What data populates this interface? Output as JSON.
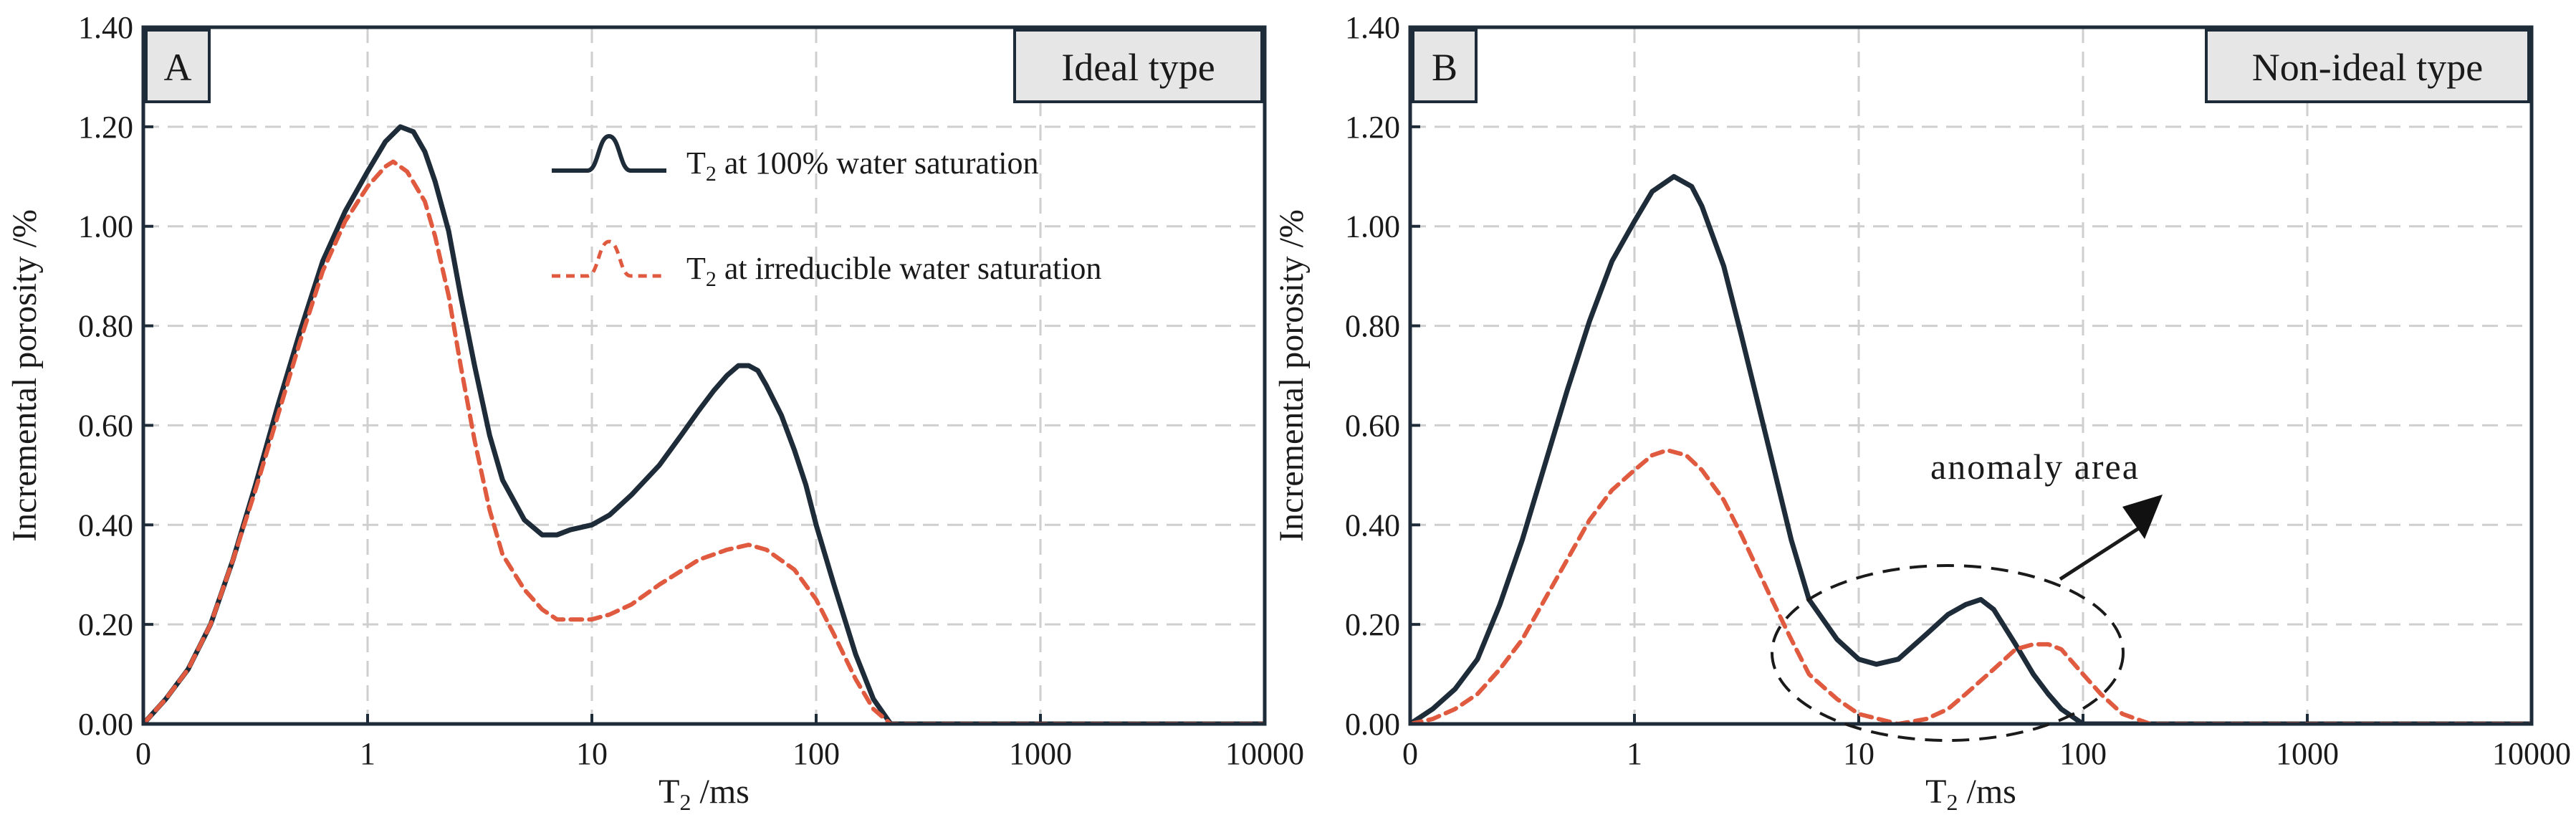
{
  "chart_data": [
    {
      "panel": "A",
      "type": "line",
      "title": "Ideal type",
      "xlabel": "T",
      "xlabel_sub": "2",
      "xlabel_unit": " /ms",
      "ylabel": "Incremental porosity /%",
      "xscale": "log (first interval 0–1)",
      "xticks": [
        "0",
        "1",
        "10",
        "100",
        "1000",
        "10000"
      ],
      "yticks": [
        "0.00",
        "0.20",
        "0.40",
        "0.60",
        "0.80",
        "1.00",
        "1.20",
        "1.40"
      ],
      "ylim": [
        0,
        1.4
      ],
      "grid": true,
      "legend": {
        "placement": "top-center",
        "entries": [
          {
            "prefix": "T",
            "sub": "2",
            "text": " at 100% water saturation",
            "style": "solid"
          },
          {
            "prefix": "T",
            "sub": "2",
            "text": " at irreducible water saturation",
            "style": "dashed"
          }
        ]
      },
      "series": [
        {
          "name": "T2 at 100% water saturation",
          "color": "#1e2b38",
          "dash": false,
          "points": [
            [
              0,
              0
            ],
            [
              0.1,
              0.05
            ],
            [
              0.2,
              0.11
            ],
            [
              0.3,
              0.2
            ],
            [
              0.4,
              0.33
            ],
            [
              0.5,
              0.48
            ],
            [
              0.6,
              0.64
            ],
            [
              0.7,
              0.79
            ],
            [
              0.8,
              0.93
            ],
            [
              0.9,
              1.03
            ],
            [
              1.0,
              1.11
            ],
            [
              1.2,
              1.17
            ],
            [
              1.4,
              1.2
            ],
            [
              1.6,
              1.19
            ],
            [
              1.8,
              1.15
            ],
            [
              2.0,
              1.09
            ],
            [
              2.3,
              0.99
            ],
            [
              2.6,
              0.86
            ],
            [
              3.0,
              0.72
            ],
            [
              3.5,
              0.58
            ],
            [
              4.0,
              0.49
            ],
            [
              5.0,
              0.41
            ],
            [
              6.0,
              0.38
            ],
            [
              7.0,
              0.38
            ],
            [
              8.0,
              0.39
            ],
            [
              10.0,
              0.4
            ],
            [
              12.0,
              0.42
            ],
            [
              15.0,
              0.46
            ],
            [
              20.0,
              0.52
            ],
            [
              25.0,
              0.58
            ],
            [
              30.0,
              0.63
            ],
            [
              35.0,
              0.67
            ],
            [
              40.0,
              0.7
            ],
            [
              45.0,
              0.72
            ],
            [
              50.0,
              0.72
            ],
            [
              55.0,
              0.71
            ],
            [
              60.0,
              0.68
            ],
            [
              70.0,
              0.62
            ],
            [
              80.0,
              0.55
            ],
            [
              90.0,
              0.48
            ],
            [
              100.0,
              0.4
            ],
            [
              120.0,
              0.28
            ],
            [
              150.0,
              0.14
            ],
            [
              180.0,
              0.05
            ],
            [
              215.0,
              0.0
            ],
            [
              10000,
              0
            ]
          ]
        },
        {
          "name": "T2 at irreducible water saturation",
          "color": "#e05a3f",
          "dash": true,
          "points": [
            [
              0,
              0
            ],
            [
              0.1,
              0.05
            ],
            [
              0.2,
              0.11
            ],
            [
              0.3,
              0.2
            ],
            [
              0.4,
              0.33
            ],
            [
              0.5,
              0.47
            ],
            [
              0.6,
              0.62
            ],
            [
              0.7,
              0.77
            ],
            [
              0.8,
              0.91
            ],
            [
              0.9,
              1.01
            ],
            [
              1.0,
              1.08
            ],
            [
              1.2,
              1.12
            ],
            [
              1.3,
              1.13
            ],
            [
              1.5,
              1.11
            ],
            [
              1.8,
              1.05
            ],
            [
              2.0,
              0.98
            ],
            [
              2.3,
              0.86
            ],
            [
              2.6,
              0.72
            ],
            [
              3.0,
              0.57
            ],
            [
              3.5,
              0.43
            ],
            [
              4.0,
              0.34
            ],
            [
              5.0,
              0.27
            ],
            [
              6.0,
              0.23
            ],
            [
              7.0,
              0.21
            ],
            [
              8.0,
              0.21
            ],
            [
              10.0,
              0.21
            ],
            [
              12.0,
              0.22
            ],
            [
              15.0,
              0.24
            ],
            [
              20.0,
              0.28
            ],
            [
              30.0,
              0.33
            ],
            [
              40.0,
              0.35
            ],
            [
              50.0,
              0.36
            ],
            [
              60.0,
              0.35
            ],
            [
              80.0,
              0.31
            ],
            [
              100.0,
              0.25
            ],
            [
              120.0,
              0.18
            ],
            [
              150.0,
              0.09
            ],
            [
              180.0,
              0.03
            ],
            [
              215.0,
              0.0
            ],
            [
              10000,
              0
            ]
          ]
        }
      ]
    },
    {
      "panel": "B",
      "type": "line",
      "title": "Non-ideal type",
      "xlabel": "T",
      "xlabel_sub": "2",
      "xlabel_unit": " /ms",
      "ylabel": "Incremental porosity /%",
      "xscale": "log (first interval 0–1)",
      "xticks": [
        "0",
        "1",
        "10",
        "100",
        "1000",
        "10000"
      ],
      "yticks": [
        "0.00",
        "0.20",
        "0.40",
        "0.60",
        "0.80",
        "1.00",
        "1.20",
        "1.40"
      ],
      "ylim": [
        0,
        1.4
      ],
      "grid": true,
      "annotation": {
        "text": "anomaly area",
        "target": "ellipse around T2 10–160 ms"
      },
      "series": [
        {
          "name": "T2 at 100% water saturation",
          "color": "#1e2b38",
          "dash": false,
          "points": [
            [
              0,
              0
            ],
            [
              0.1,
              0.03
            ],
            [
              0.2,
              0.07
            ],
            [
              0.3,
              0.13
            ],
            [
              0.4,
              0.24
            ],
            [
              0.5,
              0.37
            ],
            [
              0.6,
              0.52
            ],
            [
              0.7,
              0.67
            ],
            [
              0.8,
              0.81
            ],
            [
              0.9,
              0.93
            ],
            [
              1.0,
              1.01
            ],
            [
              1.2,
              1.07
            ],
            [
              1.5,
              1.1
            ],
            [
              1.8,
              1.08
            ],
            [
              2.0,
              1.04
            ],
            [
              2.5,
              0.92
            ],
            [
              3.0,
              0.78
            ],
            [
              4.0,
              0.55
            ],
            [
              5.0,
              0.37
            ],
            [
              6.0,
              0.25
            ],
            [
              8.0,
              0.17
            ],
            [
              10.0,
              0.13
            ],
            [
              12.0,
              0.12
            ],
            [
              15.0,
              0.13
            ],
            [
              20.0,
              0.18
            ],
            [
              25.0,
              0.22
            ],
            [
              30.0,
              0.24
            ],
            [
              35.0,
              0.25
            ],
            [
              40.0,
              0.23
            ],
            [
              50.0,
              0.16
            ],
            [
              60.0,
              0.1
            ],
            [
              70.0,
              0.06
            ],
            [
              80.0,
              0.03
            ],
            [
              100.0,
              0.0
            ],
            [
              10000,
              0
            ]
          ]
        },
        {
          "name": "T2 at irreducible water saturation",
          "color": "#e05a3f",
          "dash": true,
          "points": [
            [
              0,
              0
            ],
            [
              0.1,
              0.01
            ],
            [
              0.2,
              0.03
            ],
            [
              0.3,
              0.06
            ],
            [
              0.4,
              0.11
            ],
            [
              0.5,
              0.17
            ],
            [
              0.6,
              0.25
            ],
            [
              0.7,
              0.33
            ],
            [
              0.8,
              0.41
            ],
            [
              0.9,
              0.47
            ],
            [
              1.0,
              0.51
            ],
            [
              1.2,
              0.54
            ],
            [
              1.4,
              0.55
            ],
            [
              1.7,
              0.54
            ],
            [
              2.0,
              0.51
            ],
            [
              2.5,
              0.45
            ],
            [
              3.0,
              0.38
            ],
            [
              4.0,
              0.26
            ],
            [
              5.0,
              0.17
            ],
            [
              6.0,
              0.1
            ],
            [
              8.0,
              0.05
            ],
            [
              10.0,
              0.02
            ],
            [
              15.0,
              0.0
            ],
            [
              20.0,
              0.01
            ],
            [
              25.0,
              0.03
            ],
            [
              30.0,
              0.06
            ],
            [
              40.0,
              0.11
            ],
            [
              50.0,
              0.15
            ],
            [
              60.0,
              0.16
            ],
            [
              70.0,
              0.16
            ],
            [
              80.0,
              0.15
            ],
            [
              100.0,
              0.1
            ],
            [
              120.0,
              0.06
            ],
            [
              150.0,
              0.02
            ],
            [
              200.0,
              0.0
            ],
            [
              10000,
              0
            ]
          ]
        }
      ]
    }
  ]
}
